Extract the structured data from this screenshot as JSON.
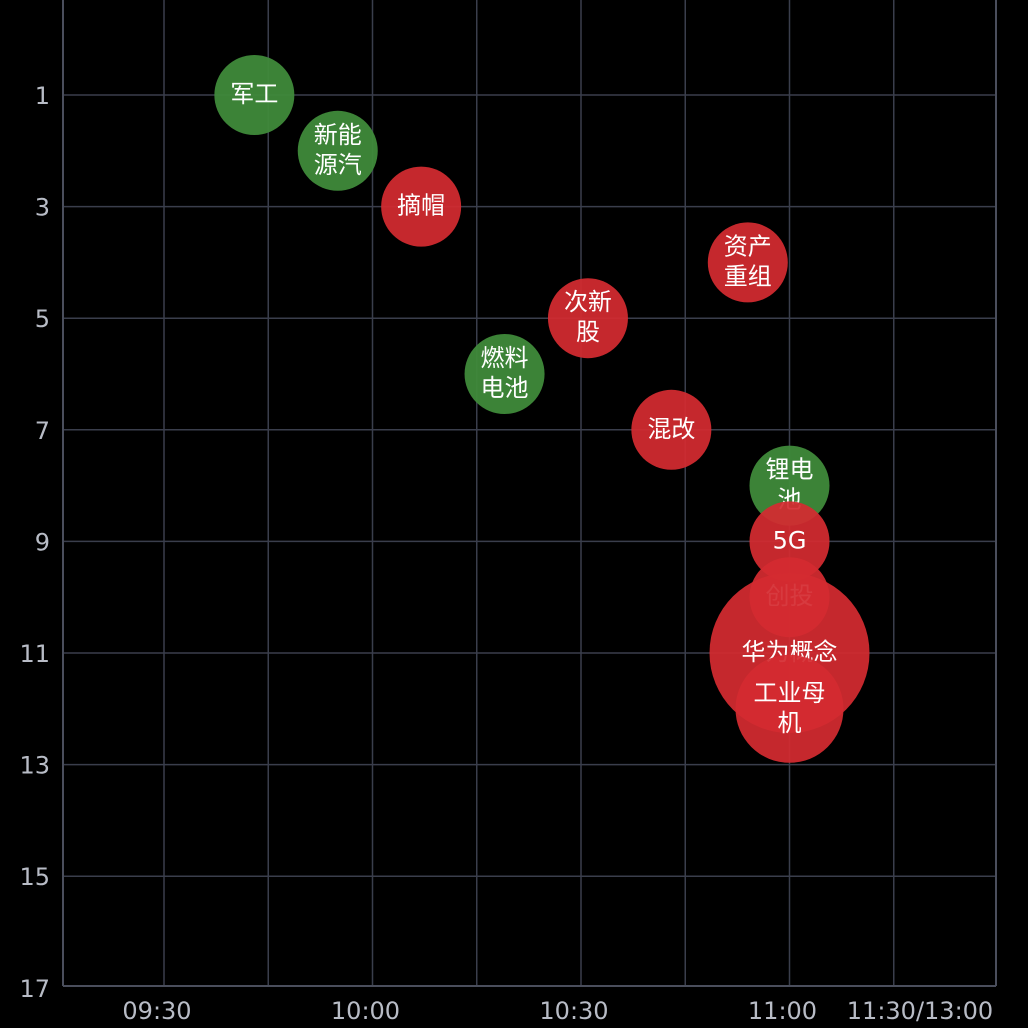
{
  "chart_data": {
    "type": "scatter",
    "subtype": "bubble",
    "title": "",
    "xlabel": "",
    "ylabel": "",
    "background": "#000000",
    "grid": true,
    "y_inverted": true,
    "x_ticks": [
      "09:30",
      "10:00",
      "10:30",
      "11:00",
      "11:30/13:00"
    ],
    "y_ticks": [
      1,
      3,
      5,
      7,
      9,
      11,
      13,
      15,
      17
    ],
    "colors": {
      "up": "#d42b30",
      "down": "#3f8a3a",
      "grid": "#3a3e4c",
      "tick_text": "#b8bcc6",
      "bubble_text": "#ffffff"
    },
    "points": [
      {
        "label": "军工",
        "x": "09:43",
        "y": 1,
        "color": "down",
        "size": 1.0
      },
      {
        "label": "新能源汽",
        "lines": [
          "新能",
          "源汽"
        ],
        "x": "09:55",
        "y": 2,
        "color": "down",
        "size": 1.0
      },
      {
        "label": "摘帽",
        "x": "10:07",
        "y": 3,
        "color": "up",
        "size": 1.0
      },
      {
        "label": "资产重组",
        "lines": [
          "资产",
          "重组"
        ],
        "x": "10:54",
        "y": 4,
        "color": "up",
        "size": 1.0
      },
      {
        "label": "次新股",
        "lines": [
          "次新",
          "股"
        ],
        "x": "10:31",
        "y": 5,
        "color": "up",
        "size": 1.0
      },
      {
        "label": "燃料电池",
        "lines": [
          "燃料",
          "电池"
        ],
        "x": "10:19",
        "y": 6,
        "color": "down",
        "size": 1.0
      },
      {
        "label": "混改",
        "x": "10:43",
        "y": 7,
        "color": "up",
        "size": 1.0
      },
      {
        "label": "锂电池",
        "lines": [
          "锂电",
          "池"
        ],
        "x": "11:00",
        "y": 8,
        "color": "down",
        "size": 1.0
      },
      {
        "label": "5G",
        "x": "11:00",
        "y": 9,
        "color": "up",
        "size": 1.0
      },
      {
        "label": "创投",
        "x": "11:00",
        "y": 10,
        "color": "up",
        "size": 1.0
      },
      {
        "label": "华为概念",
        "x": "11:00",
        "y": 11,
        "color": "up",
        "size": 2.0
      },
      {
        "label": "工业母机",
        "lines": [
          "工业母",
          "机"
        ],
        "x": "11:00",
        "y": 12,
        "color": "up",
        "size": 1.35
      }
    ]
  }
}
